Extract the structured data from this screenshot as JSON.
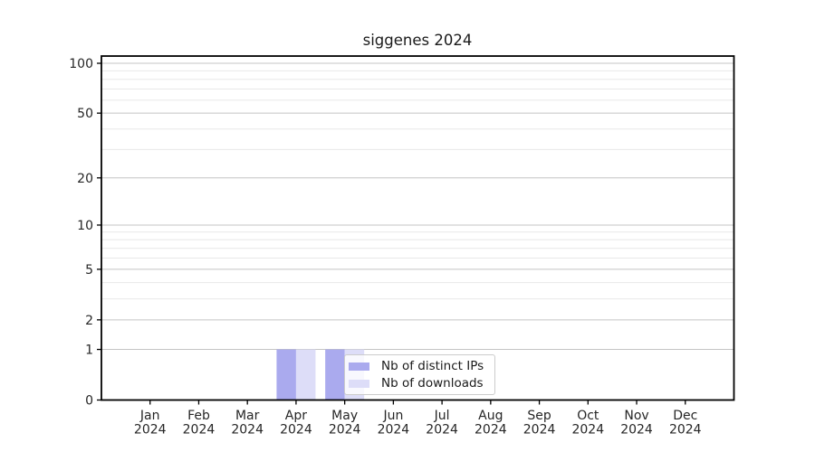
{
  "chart_data": {
    "type": "bar",
    "title": "siggenes 2024",
    "x": {
      "categories": [
        "Jan",
        "Feb",
        "Mar",
        "Apr",
        "May",
        "Jun",
        "Jul",
        "Aug",
        "Sep",
        "Oct",
        "Nov",
        "Dec"
      ],
      "year_label": "2024"
    },
    "series": [
      {
        "name": "Nb of distinct IPs",
        "color": "#aaaaee",
        "values": [
          0,
          0,
          0,
          1,
          1,
          0,
          0,
          0,
          0,
          0,
          0,
          0
        ]
      },
      {
        "name": "Nb of downloads",
        "color": "#ddddf8",
        "values": [
          0,
          0,
          0,
          1,
          1,
          0,
          0,
          0,
          0,
          0,
          0,
          0
        ]
      }
    ],
    "y_axis": {
      "scale": "log10(1+y)",
      "ticks": [
        0,
        1,
        2,
        5,
        10,
        20,
        50,
        100
      ],
      "minor_gridlines": [
        3,
        4,
        6,
        7,
        8,
        9,
        30,
        40,
        60,
        70,
        80,
        90
      ],
      "lim": [
        0,
        110
      ]
    },
    "grid": "horizontal",
    "legend": {
      "position": "inside-bottom-center"
    },
    "colors": {
      "major_grid": "#c4c4c4",
      "minor_grid": "#e8e8e8",
      "axis": "#000000",
      "text": "#262626",
      "legend_border": "#cccccc"
    }
  }
}
